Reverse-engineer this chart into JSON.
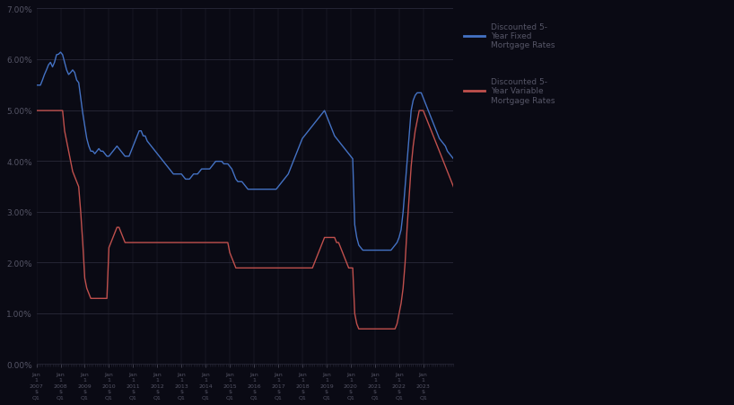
{
  "legend_blue": "Discounted 5-\nYear Fixed\nMortgage Rates",
  "legend_red": "Discounted 5-\nYear Variable\nMortgage Rates",
  "blue_color": "#4472C4",
  "red_color": "#C0504D",
  "ylim": [
    0.0,
    0.07
  ],
  "yticks": [
    0.0,
    0.01,
    0.02,
    0.03,
    0.04,
    0.05,
    0.06,
    0.07
  ],
  "ytick_labels": [
    "0.00%",
    "1.00%",
    "2.00%",
    "3.00%",
    "4.00%",
    "5.00%",
    "6.00%",
    "7.00%"
  ],
  "bg_color": "#0a0a14",
  "grid_color": "#2a2a3a",
  "text_color": "#555566",
  "blue_values": [
    0.0549,
    0.0549,
    0.0549,
    0.0559,
    0.057,
    0.0579,
    0.0589,
    0.0594,
    0.0585,
    0.0594,
    0.0609,
    0.061,
    0.0614,
    0.0609,
    0.0594,
    0.0579,
    0.057,
    0.0574,
    0.0579,
    0.0574,
    0.0559,
    0.0554,
    0.0524,
    0.0494,
    0.0469,
    0.0444,
    0.0429,
    0.0419,
    0.0419,
    0.0414,
    0.0419,
    0.0424,
    0.0419,
    0.0419,
    0.0414,
    0.0409,
    0.0409,
    0.0414,
    0.0419,
    0.0424,
    0.0429,
    0.0424,
    0.0419,
    0.0414,
    0.0409,
    0.0409,
    0.0409,
    0.0419,
    0.0429,
    0.0439,
    0.0449,
    0.0459,
    0.0459,
    0.0449,
    0.0449,
    0.0439,
    0.0434,
    0.0429,
    0.0424,
    0.0419,
    0.0414,
    0.0409,
    0.0404,
    0.0399,
    0.0394,
    0.0389,
    0.0384,
    0.0379,
    0.0374,
    0.0374,
    0.0374,
    0.0374,
    0.0374,
    0.0369,
    0.0364,
    0.0364,
    0.0364,
    0.0369,
    0.0374,
    0.0374,
    0.0374,
    0.0379,
    0.0384,
    0.0384,
    0.0384,
    0.0384,
    0.0384,
    0.0389,
    0.0394,
    0.0399,
    0.0399,
    0.0399,
    0.0399,
    0.0394,
    0.0394,
    0.0394,
    0.0389,
    0.0384,
    0.0374,
    0.0364,
    0.0359,
    0.0359,
    0.0359,
    0.0354,
    0.0349,
    0.0344,
    0.0344,
    0.0344,
    0.0344,
    0.0344,
    0.0344,
    0.0344,
    0.0344,
    0.0344,
    0.0344,
    0.0344,
    0.0344,
    0.0344,
    0.0344,
    0.0344,
    0.0349,
    0.0354,
    0.0359,
    0.0364,
    0.0369,
    0.0374,
    0.0384,
    0.0394,
    0.0404,
    0.0414,
    0.0424,
    0.0434,
    0.0444,
    0.0449,
    0.0454,
    0.0459,
    0.0464,
    0.0469,
    0.0474,
    0.0479,
    0.0484,
    0.0489,
    0.0494,
    0.0499,
    0.0489,
    0.0479,
    0.0469,
    0.0459,
    0.0449,
    0.0444,
    0.0439,
    0.0434,
    0.0429,
    0.0424,
    0.0419,
    0.0414,
    0.0409,
    0.0404,
    0.0274,
    0.0249,
    0.0234,
    0.0229,
    0.0224,
    0.0224,
    0.0224,
    0.0224,
    0.0224,
    0.0224,
    0.0224,
    0.0224,
    0.0224,
    0.0224,
    0.0224,
    0.0224,
    0.0224,
    0.0224,
    0.0224,
    0.0229,
    0.0234,
    0.0239,
    0.0249,
    0.0264,
    0.0299,
    0.0349,
    0.0399,
    0.0449,
    0.0499,
    0.0519,
    0.0529,
    0.0534,
    0.0534,
    0.0534,
    0.0524,
    0.0514,
    0.0504,
    0.0494,
    0.0484,
    0.0474,
    0.0464,
    0.0454,
    0.0444,
    0.0439,
    0.0434,
    0.0429,
    0.0419,
    0.0414,
    0.0409,
    0.0404
  ],
  "red_values": [
    0.0499,
    0.0499,
    0.0499,
    0.0499,
    0.0499,
    0.0499,
    0.0499,
    0.0499,
    0.0499,
    0.0499,
    0.0499,
    0.0499,
    0.0499,
    0.0499,
    0.0459,
    0.0439,
    0.0419,
    0.0399,
    0.0379,
    0.0369,
    0.0359,
    0.0349,
    0.0299,
    0.0239,
    0.0169,
    0.0149,
    0.0139,
    0.0129,
    0.0129,
    0.0129,
    0.0129,
    0.0129,
    0.0129,
    0.0129,
    0.0129,
    0.0129,
    0.0229,
    0.0239,
    0.0249,
    0.0259,
    0.0269,
    0.0269,
    0.0259,
    0.0249,
    0.0239,
    0.0239,
    0.0239,
    0.0239,
    0.0239,
    0.0239,
    0.0239,
    0.0239,
    0.0239,
    0.0239,
    0.0239,
    0.0239,
    0.0239,
    0.0239,
    0.0239,
    0.0239,
    0.0239,
    0.0239,
    0.0239,
    0.0239,
    0.0239,
    0.0239,
    0.0239,
    0.0239,
    0.0239,
    0.0239,
    0.0239,
    0.0239,
    0.0239,
    0.0239,
    0.0239,
    0.0239,
    0.0239,
    0.0239,
    0.0239,
    0.0239,
    0.0239,
    0.0239,
    0.0239,
    0.0239,
    0.0239,
    0.0239,
    0.0239,
    0.0239,
    0.0239,
    0.0239,
    0.0239,
    0.0239,
    0.0239,
    0.0239,
    0.0239,
    0.0239,
    0.0219,
    0.0209,
    0.0199,
    0.0189,
    0.0189,
    0.0189,
    0.0189,
    0.0189,
    0.0189,
    0.0189,
    0.0189,
    0.0189,
    0.0189,
    0.0189,
    0.0189,
    0.0189,
    0.0189,
    0.0189,
    0.0189,
    0.0189,
    0.0189,
    0.0189,
    0.0189,
    0.0189,
    0.0189,
    0.0189,
    0.0189,
    0.0189,
    0.0189,
    0.0189,
    0.0189,
    0.0189,
    0.0189,
    0.0189,
    0.0189,
    0.0189,
    0.0189,
    0.0189,
    0.0189,
    0.0189,
    0.0189,
    0.0189,
    0.0199,
    0.0209,
    0.0219,
    0.0229,
    0.0239,
    0.0249,
    0.0249,
    0.0249,
    0.0249,
    0.0249,
    0.0249,
    0.0239,
    0.0239,
    0.0229,
    0.0219,
    0.0209,
    0.0199,
    0.0189,
    0.0189,
    0.0189,
    0.0099,
    0.0079,
    0.0069,
    0.0069,
    0.0069,
    0.0069,
    0.0069,
    0.0069,
    0.0069,
    0.0069,
    0.0069,
    0.0069,
    0.0069,
    0.0069,
    0.0069,
    0.0069,
    0.0069,
    0.0069,
    0.0069,
    0.0069,
    0.0069,
    0.0079,
    0.0099,
    0.0119,
    0.0149,
    0.0199,
    0.0269,
    0.0329,
    0.0389,
    0.0429,
    0.0459,
    0.0479,
    0.0499,
    0.0499,
    0.0499,
    0.0489,
    0.0479,
    0.0469,
    0.0459,
    0.0449,
    0.0439,
    0.0429,
    0.0419,
    0.0409,
    0.0399,
    0.0389,
    0.0379,
    0.0369,
    0.0359,
    0.0349
  ],
  "x_tick_indices": [
    0,
    12,
    24,
    36,
    48,
    60,
    72,
    84,
    96,
    108,
    120,
    132,
    144,
    156,
    168,
    180,
    192
  ],
  "x_tick_years": [
    2007,
    2008,
    2009,
    2010,
    2011,
    2012,
    2013,
    2014,
    2015,
    2016,
    2017,
    2018,
    2019,
    2020,
    2021,
    2022,
    2023
  ]
}
